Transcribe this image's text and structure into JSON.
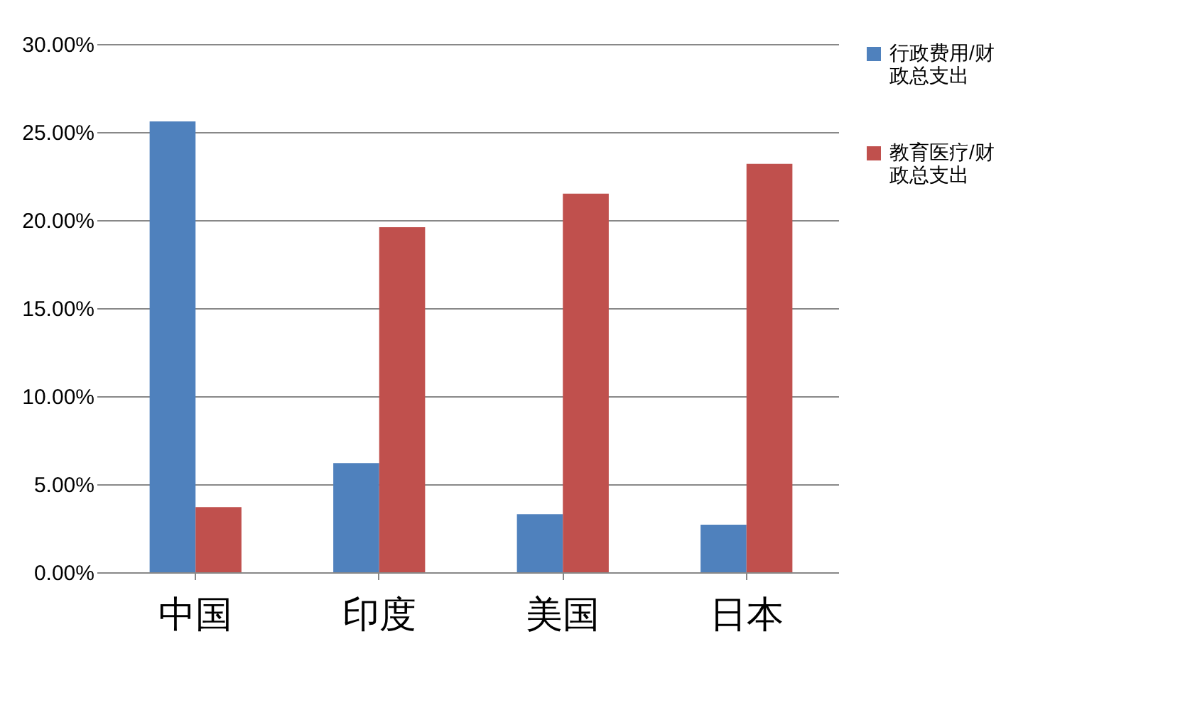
{
  "chart_data": {
    "type": "bar",
    "categories": [
      "中国",
      "印度",
      "美国",
      "日本"
    ],
    "series": [
      {
        "name": "行政费用/财政总支出",
        "color": "#4f81bd",
        "values": [
          25.6,
          6.2,
          3.3,
          2.7
        ]
      },
      {
        "name": "教育医疗/财政总支出",
        "color": "#c0504d",
        "values": [
          3.7,
          19.6,
          21.5,
          23.2
        ]
      }
    ],
    "ylim": [
      0,
      30
    ],
    "yticks": [
      {
        "value": 0,
        "label": "0.00%"
      },
      {
        "value": 5,
        "label": "5.00%"
      },
      {
        "value": 10,
        "label": "10.00%"
      },
      {
        "value": 15,
        "label": "15.00%"
      },
      {
        "value": 20,
        "label": "20.00%"
      },
      {
        "value": 25,
        "label": "25.00%"
      },
      {
        "value": 30,
        "label": "30.00%"
      }
    ],
    "grid": "y",
    "legend": "right"
  }
}
